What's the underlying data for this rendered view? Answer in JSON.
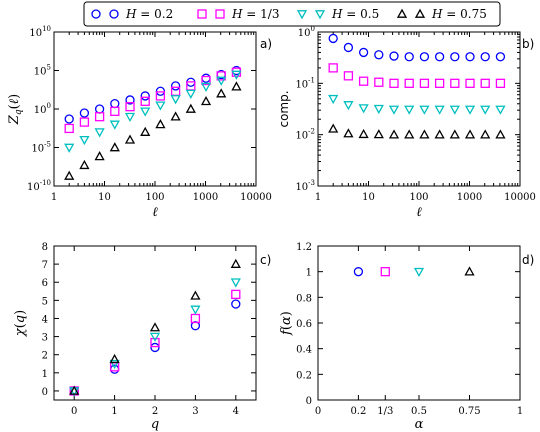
{
  "legend": {
    "entries": [
      {
        "label": "H = 0.2",
        "color": "#0000ff",
        "marker": "circle"
      },
      {
        "label": "H = 1/3",
        "color": "#ff00ff",
        "marker": "square"
      },
      {
        "label": "H = 0.5",
        "color": "#00bfbf",
        "marker": "triangle-down"
      },
      {
        "label": "H = 0.75",
        "color": "#000000",
        "marker": "triangle-up"
      }
    ]
  },
  "chart_data": [
    {
      "panel": "a)",
      "type": "scatter",
      "xlabel": "ℓ",
      "ylabel": "Z_q(ℓ)",
      "xscale": "log",
      "yscale": "log",
      "xlim": [
        1,
        10000
      ],
      "ylim": [
        1e-10,
        10000000000.0
      ],
      "xticks": [
        "1",
        "10",
        "100",
        "1000",
        "10000"
      ],
      "yticks": [
        "10^-10",
        "10^-5",
        "10^0",
        "10^5",
        "10^10"
      ],
      "x": [
        2,
        4,
        8,
        16,
        32,
        64,
        128,
        256,
        512,
        1024,
        2048,
        4096
      ],
      "series": [
        {
          "name": "H = 0.2",
          "values": [
            0.05,
            0.3,
            1,
            5,
            15,
            50,
            200,
            1000,
            3000,
            10000,
            30000,
            100000
          ]
        },
        {
          "name": "H = 1/3",
          "values": [
            0.003,
            0.02,
            0.1,
            0.5,
            2,
            10,
            50,
            200,
            1000,
            5000,
            20000,
            60000
          ]
        },
        {
          "name": "H = 0.5",
          "values": [
            1e-05,
            0.0001,
            0.001,
            0.01,
            0.1,
            0.5,
            3,
            20,
            100,
            800,
            5000,
            30000
          ]
        },
        {
          "name": "H = 0.75",
          "values": [
            2e-09,
            5e-08,
            7e-07,
            1e-05,
            0.0001,
            0.001,
            0.01,
            0.1,
            1,
            10,
            100,
            800
          ]
        }
      ]
    },
    {
      "panel": "b)",
      "type": "scatter",
      "xlabel": "ℓ",
      "ylabel": "comp.",
      "xscale": "log",
      "yscale": "log",
      "xlim": [
        1,
        10000
      ],
      "ylim": [
        0.001,
        1
      ],
      "xticks": [
        "1",
        "10",
        "100",
        "1000",
        "10000"
      ],
      "yticks": [
        "10^-3",
        "10^-2",
        "10^-1",
        "10^0"
      ],
      "x": [
        2,
        4,
        8,
        16,
        32,
        64,
        128,
        256,
        512,
        1024,
        2048,
        4096
      ],
      "series": [
        {
          "name": "H = 0.2",
          "values": [
            0.75,
            0.5,
            0.4,
            0.36,
            0.34,
            0.33,
            0.33,
            0.33,
            0.33,
            0.33,
            0.33,
            0.33
          ]
        },
        {
          "name": "H = 1/3",
          "values": [
            0.2,
            0.14,
            0.11,
            0.105,
            0.1,
            0.1,
            0.1,
            0.1,
            0.1,
            0.1,
            0.1,
            0.1
          ]
        },
        {
          "name": "H = 0.5",
          "values": [
            0.05,
            0.038,
            0.033,
            0.032,
            0.031,
            0.031,
            0.031,
            0.031,
            0.031,
            0.031,
            0.031,
            0.031
          ]
        },
        {
          "name": "H = 0.75",
          "values": [
            0.013,
            0.0105,
            0.0102,
            0.0101,
            0.01,
            0.01,
            0.01,
            0.01,
            0.01,
            0.01,
            0.01,
            0.01
          ]
        }
      ]
    },
    {
      "panel": "c)",
      "type": "scatter",
      "xlabel": "q",
      "ylabel": "χ(q)",
      "xlim": [
        -0.5,
        4.5
      ],
      "ylim": [
        -0.5,
        8
      ],
      "xticks": [
        "0",
        "1",
        "2",
        "3",
        "4"
      ],
      "yticks": [
        "0",
        "1",
        "2",
        "3",
        "4",
        "5",
        "6",
        "7",
        "8"
      ],
      "x": [
        0,
        1,
        2,
        3,
        4
      ],
      "series": [
        {
          "name": "H = 0.2",
          "values": [
            0,
            1.2,
            2.4,
            3.6,
            4.8
          ]
        },
        {
          "name": "H = 1/3",
          "values": [
            0,
            1.33,
            2.67,
            4.0,
            5.33
          ]
        },
        {
          "name": "H = 0.5",
          "values": [
            0,
            1.5,
            3.0,
            4.5,
            6.0
          ]
        },
        {
          "name": "H = 0.75",
          "values": [
            0,
            1.75,
            3.5,
            5.25,
            7.0
          ]
        }
      ]
    },
    {
      "panel": "d)",
      "type": "scatter",
      "xlabel": "α",
      "ylabel": "f(α)",
      "xlim": [
        0,
        1
      ],
      "ylim": [
        0,
        1.2
      ],
      "xticks": [
        "0",
        "0.2",
        "1/3",
        "0.5",
        "0.75",
        "1"
      ],
      "yticks": [
        "0",
        "0.2",
        "0.4",
        "0.6",
        "0.8",
        "1",
        "1.2"
      ],
      "series": [
        {
          "name": "H = 0.2",
          "x": [
            0.2
          ],
          "values": [
            1
          ]
        },
        {
          "name": "H = 1/3",
          "x": [
            0.333
          ],
          "values": [
            1
          ]
        },
        {
          "name": "H = 0.5",
          "x": [
            0.5
          ],
          "values": [
            1
          ]
        },
        {
          "name": "H = 0.75",
          "x": [
            0.75
          ],
          "values": [
            1
          ]
        }
      ]
    }
  ]
}
